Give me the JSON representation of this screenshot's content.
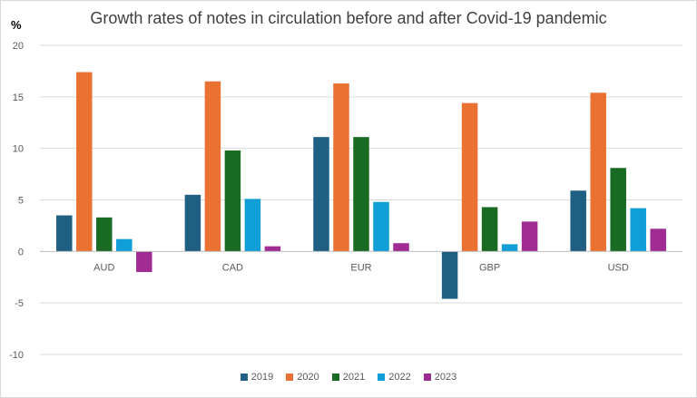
{
  "chart_data": {
    "type": "bar",
    "title": "Growth rates of notes in circulation before and after Covid-19 pandemic",
    "ylabel": "%",
    "xlabel": "",
    "ylim": [
      -10,
      20
    ],
    "yticks": [
      20,
      15,
      10,
      5,
      0,
      -5,
      -10
    ],
    "grid": true,
    "legend_position": "bottom",
    "categories": [
      "AUD",
      "CAD",
      "EUR",
      "GBP",
      "USD"
    ],
    "series": [
      {
        "name": "2019",
        "color": "#1f5f82",
        "values": [
          3.5,
          5.5,
          11.1,
          -4.6,
          5.9
        ]
      },
      {
        "name": "2020",
        "color": "#e97132",
        "values": [
          17.4,
          16.5,
          16.3,
          14.4,
          15.4
        ]
      },
      {
        "name": "2021",
        "color": "#196b24",
        "values": [
          3.3,
          9.8,
          11.1,
          4.3,
          8.1
        ]
      },
      {
        "name": "2022",
        "color": "#0f9ed5",
        "values": [
          1.2,
          5.1,
          4.8,
          0.7,
          4.2
        ]
      },
      {
        "name": "2023",
        "color": "#a02b93",
        "values": [
          -2.0,
          0.5,
          0.8,
          2.9,
          2.2
        ]
      }
    ]
  }
}
